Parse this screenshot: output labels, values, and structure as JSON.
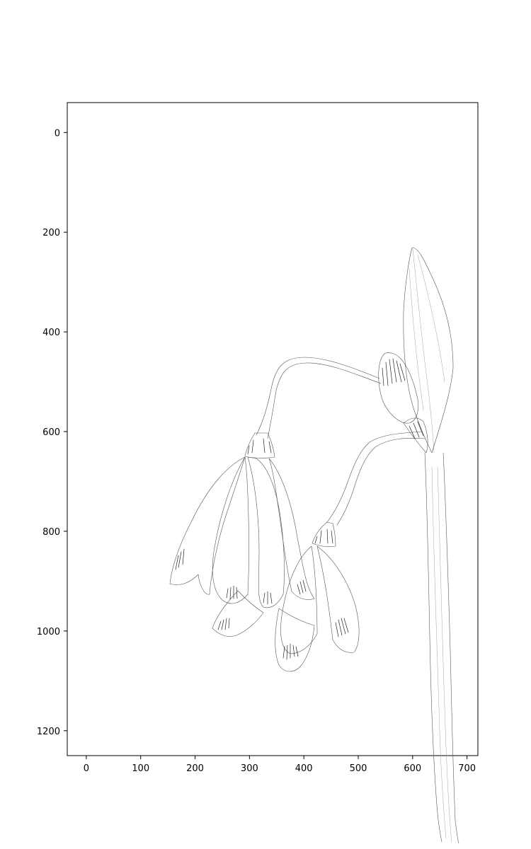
{
  "chart_data": {
    "type": "image",
    "title": "",
    "xlabel": "",
    "ylabel": "",
    "xlim": [
      -35,
      720
    ],
    "ylim": [
      1250,
      -60
    ],
    "y_inverted": true,
    "x_ticks": [
      0,
      100,
      200,
      300,
      400,
      500,
      600,
      700
    ],
    "y_ticks": [
      0,
      200,
      400,
      600,
      800,
      1000,
      1200
    ],
    "x_tick_labels": [
      "0",
      "100",
      "200",
      "300",
      "400",
      "500",
      "600",
      "700"
    ],
    "y_tick_labels": [
      "0",
      "200",
      "400",
      "600",
      "800",
      "1000",
      "1200"
    ],
    "grid": false,
    "content": "line-art pencil sketch of a snowdrop plant with drooping bell-shaped flowers"
  }
}
